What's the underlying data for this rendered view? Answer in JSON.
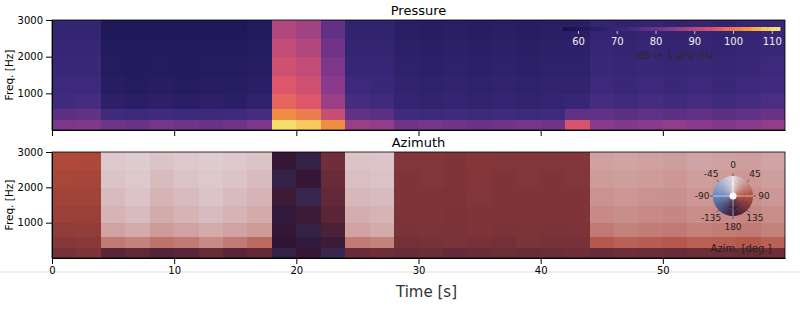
{
  "chart_data": [
    {
      "type": "heatmap",
      "title": "Pressure",
      "y_label": "Freq. [Hz]",
      "xlim": [
        0,
        60
      ],
      "xticks": [
        0,
        10,
        20,
        30,
        40,
        50
      ],
      "ylim": [
        0,
        3000
      ],
      "yticks": [
        1000,
        2000,
        3000
      ],
      "tick_labels": "y",
      "x_bins": [
        0,
        2,
        4,
        6,
        8,
        10,
        12,
        14,
        16,
        18,
        20,
        22,
        24,
        26,
        28,
        30,
        32,
        34,
        36,
        38,
        40,
        42,
        44,
        46,
        48,
        50,
        52,
        54,
        56,
        58,
        60
      ],
      "y_bins": [
        0,
        300,
        600,
        1000,
        1500,
        2000,
        2500,
        3000
      ],
      "values": [
        [
          82,
          83,
          80,
          79,
          81,
          80,
          79,
          80,
          82,
          110,
          108,
          102,
          86,
          85,
          80,
          81,
          80,
          79,
          80,
          81,
          80,
          94,
          84,
          83,
          84,
          85,
          84,
          83,
          84,
          85
        ],
        [
          77,
          78,
          73,
          72,
          73,
          72,
          72,
          73,
          74,
          102,
          100,
          92,
          78,
          77,
          73,
          72,
          73,
          72,
          73,
          72,
          73,
          78,
          78,
          77,
          78,
          77,
          78,
          77,
          78,
          79
        ],
        [
          73,
          74,
          66,
          65,
          66,
          65,
          66,
          65,
          67,
          97,
          95,
          86,
          74,
          73,
          69,
          68,
          69,
          68,
          69,
          68,
          69,
          70,
          74,
          73,
          74,
          73,
          74,
          73,
          74,
          75
        ],
        [
          72,
          72,
          64,
          63,
          64,
          63,
          64,
          64,
          65,
          95,
          93,
          84,
          72,
          71,
          68,
          67,
          68,
          67,
          68,
          67,
          68,
          68,
          72,
          71,
          72,
          71,
          72,
          71,
          72,
          73
        ],
        [
          71,
          71,
          63,
          62,
          63,
          62,
          63,
          63,
          64,
          93,
          91,
          82,
          70,
          70,
          67,
          66,
          67,
          66,
          67,
          66,
          67,
          67,
          71,
          70,
          71,
          70,
          71,
          70,
          71,
          72
        ],
        [
          70,
          70,
          62,
          62,
          62,
          62,
          62,
          62,
          63,
          91,
          89,
          80,
          69,
          69,
          66,
          65,
          66,
          65,
          66,
          65,
          66,
          66,
          70,
          69,
          70,
          69,
          70,
          69,
          70,
          71
        ],
        [
          69,
          69,
          61,
          61,
          61,
          61,
          61,
          61,
          62,
          89,
          87,
          78,
          68,
          68,
          65,
          64,
          65,
          64,
          65,
          64,
          65,
          65,
          69,
          68,
          69,
          68,
          69,
          68,
          69,
          70
        ]
      ],
      "colorbar": {
        "range": [
          56,
          112
        ],
        "ticks": [
          60,
          70,
          80,
          90,
          100,
          110
        ],
        "label": "dB re 1 μPa²/Hz"
      }
    },
    {
      "type": "heatmap",
      "title": "Azimuth",
      "x_label": "Time [s]",
      "y_label": "Freq. [Hz]",
      "xlim": [
        0,
        60
      ],
      "xticks": [
        0,
        10,
        20,
        30,
        40,
        50
      ],
      "ylim": [
        0,
        3000
      ],
      "yticks": [
        1000,
        2000,
        3000
      ],
      "x_bins": [
        0,
        2,
        4,
        6,
        8,
        10,
        12,
        14,
        16,
        18,
        20,
        22,
        24,
        26,
        28,
        30,
        32,
        34,
        36,
        38,
        40,
        42,
        44,
        46,
        48,
        50,
        52,
        54,
        56,
        58,
        60
      ],
      "y_bins": [
        0,
        300,
        600,
        1000,
        1500,
        2000,
        2500,
        3000
      ],
      "values": [
        [
          130,
          125,
          150,
          145,
          155,
          150,
          140,
          150,
          145,
          -170,
          175,
          -165,
          140,
          135,
          140,
          138,
          142,
          140,
          136,
          140,
          138,
          135,
          140,
          135,
          138,
          140,
          136,
          138,
          140,
          135
        ],
        [
          120,
          118,
          60,
          55,
          65,
          60,
          50,
          60,
          70,
          180,
          -175,
          170,
          60,
          55,
          132,
          130,
          128,
          130,
          132,
          128,
          130,
          130,
          80,
          75,
          78,
          80,
          76,
          78,
          80,
          75
        ],
        [
          112,
          110,
          35,
          30,
          40,
          35,
          30,
          35,
          40,
          175,
          -170,
          160,
          35,
          30,
          128,
          126,
          128,
          125,
          127,
          126,
          128,
          126,
          60,
          55,
          58,
          60,
          56,
          58,
          60,
          55
        ],
        [
          105,
          105,
          25,
          20,
          30,
          25,
          20,
          25,
          30,
          -175,
          170,
          150,
          28,
          25,
          126,
          125,
          127,
          124,
          126,
          125,
          126,
          125,
          50,
          48,
          50,
          52,
          48,
          50,
          52,
          48
        ],
        [
          100,
          100,
          20,
          15,
          25,
          20,
          15,
          20,
          25,
          170,
          -165,
          145,
          22,
          20,
          125,
          124,
          126,
          123,
          125,
          124,
          125,
          124,
          45,
          42,
          45,
          46,
          42,
          45,
          46,
          42
        ],
        [
          95,
          96,
          15,
          12,
          20,
          15,
          12,
          15,
          20,
          -170,
          175,
          140,
          18,
          16,
          124,
          123,
          125,
          122,
          124,
          123,
          124,
          123,
          40,
          38,
          40,
          42,
          38,
          40,
          42,
          38
        ],
        [
          90,
          92,
          12,
          10,
          15,
          12,
          10,
          12,
          15,
          175,
          -170,
          135,
          15,
          14,
          123,
          122,
          124,
          121,
          123,
          122,
          123,
          122,
          36,
          34,
          36,
          38,
          34,
          36,
          38,
          34
        ]
      ],
      "colorwheel": {
        "range": [
          -180,
          180
        ],
        "ticks": [
          0,
          45,
          90,
          135,
          180,
          -135,
          -90,
          -45
        ],
        "label": "Azim. [deg.]"
      }
    }
  ]
}
